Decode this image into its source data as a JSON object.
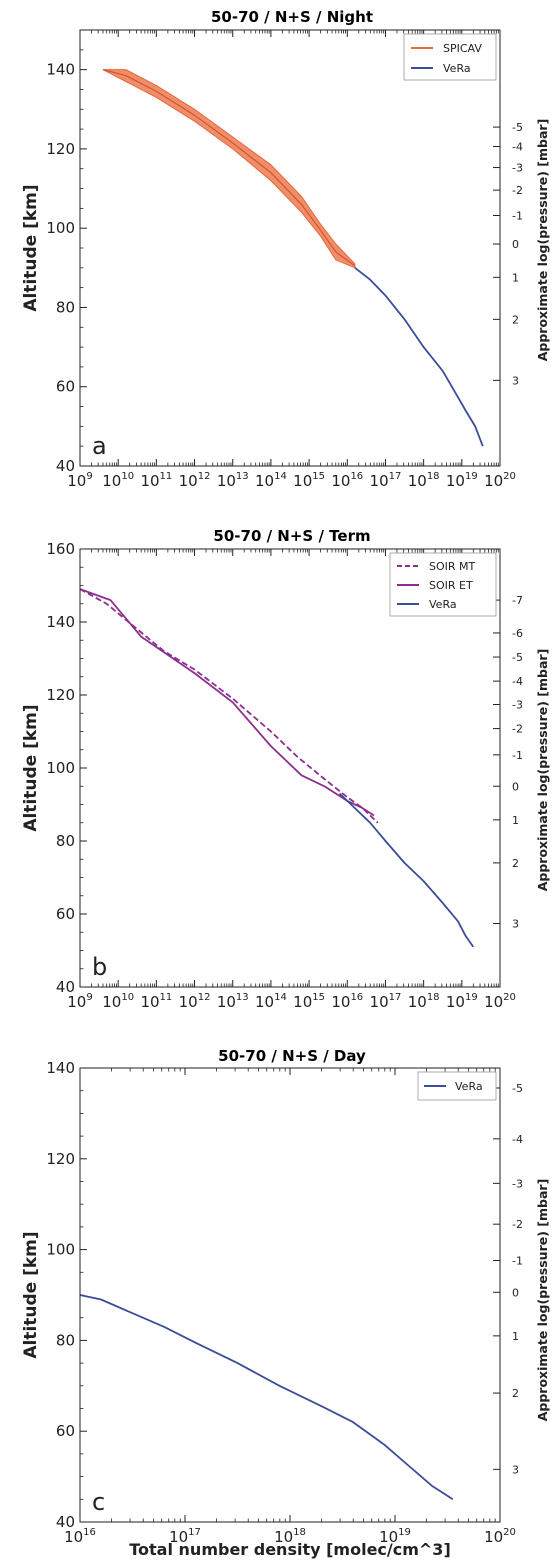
{
  "figure": {
    "xlabel": "Total number density [molec/cm^3]"
  },
  "chart_data": [
    {
      "type": "line",
      "panel_label": "a",
      "title": "50-70 / N+S / Night",
      "ylabel": "Altitude [km]",
      "y2label": "Approximate log(pressure) [mbar]",
      "x_scale": "log",
      "xlim_exp": [
        9,
        20
      ],
      "x_tick_base": "10",
      "x_tick_exponents": [
        "9",
        "10",
        "11",
        "12",
        "13",
        "14",
        "15",
        "16",
        "17",
        "18",
        "19",
        "20"
      ],
      "ylim": [
        40,
        150
      ],
      "y_ticks": [
        "40",
        "60",
        "80",
        "100",
        "120",
        "140"
      ],
      "y2_ticks": [
        {
          "label": "-5",
          "alt": 125.5
        },
        {
          "label": "-4",
          "alt": 120.6
        },
        {
          "label": "-3",
          "alt": 115.3
        },
        {
          "label": "-2",
          "alt": 109.6
        },
        {
          "label": "-1",
          "alt": 103.2
        },
        {
          "label": "0",
          "alt": 96.0
        },
        {
          "label": "1",
          "alt": 87.6
        },
        {
          "label": "2",
          "alt": 77.0
        },
        {
          "label": "3",
          "alt": 61.6
        }
      ],
      "legend_position": "top-right",
      "series": [
        {
          "name": "SPICAV",
          "color": "#e9683a",
          "style": "band",
          "x_log": [
            9.6,
            10.2,
            11.0,
            12.0,
            13.0,
            14.0,
            14.8,
            15.3,
            15.7,
            16.2
          ],
          "y_lower": [
            140,
            137,
            133,
            127,
            120,
            112,
            104,
            98,
            92,
            90
          ],
          "y_upper": [
            140,
            140,
            136,
            130,
            123,
            116,
            108,
            101,
            96,
            91
          ]
        },
        {
          "name": "VeRa",
          "color": "#3c4c98",
          "style": "solid",
          "x_log": [
            16.2,
            16.6,
            17.0,
            17.5,
            18.0,
            18.5,
            18.8,
            19.1,
            19.35,
            19.55
          ],
          "y": [
            90,
            87,
            83,
            77,
            70,
            64,
            59,
            54,
            50,
            45
          ]
        }
      ]
    },
    {
      "type": "line",
      "panel_label": "b",
      "title": "50-70 / N+S / Term",
      "ylabel": "Altitude [km]",
      "y2label": "Approximate log(pressure) [mbar]",
      "x_scale": "log",
      "xlim_exp": [
        9,
        20
      ],
      "x_tick_base": "10",
      "x_tick_exponents": [
        "9",
        "10",
        "11",
        "12",
        "13",
        "14",
        "15",
        "16",
        "17",
        "18",
        "19",
        "20"
      ],
      "ylim": [
        40,
        160
      ],
      "y_ticks": [
        "40",
        "60",
        "80",
        "100",
        "120",
        "140",
        "160"
      ],
      "y2_ticks": [
        {
          "label": "-7",
          "alt": 146
        },
        {
          "label": "-6",
          "alt": 137
        },
        {
          "label": "-5",
          "alt": 130.4
        },
        {
          "label": "-4",
          "alt": 123.8
        },
        {
          "label": "-3",
          "alt": 117.4
        },
        {
          "label": "-2",
          "alt": 110.8
        },
        {
          "label": "-1",
          "alt": 103.6
        },
        {
          "label": "0",
          "alt": 95.0
        },
        {
          "label": "1",
          "alt": 85.8
        },
        {
          "label": "2",
          "alt": 74.0
        },
        {
          "label": "3",
          "alt": 57.4
        }
      ],
      "legend_position": "top-right",
      "series": [
        {
          "name": "SOIR MT",
          "color": "#8b2f8e",
          "style": "dashed",
          "x_log": [
            9.0,
            9.7,
            10.5,
            11.2,
            12.0,
            13.0,
            14.0,
            14.7,
            15.4,
            16.0,
            16.4,
            16.8
          ],
          "y": [
            149,
            145,
            138,
            132,
            127,
            119,
            110,
            103,
            97,
            92,
            89,
            85
          ]
        },
        {
          "name": "SOIR ET",
          "color": "#8b2f8e",
          "style": "solid",
          "x_log": [
            9.0,
            9.8,
            10.6,
            11.3,
            12.0,
            13.0,
            14.0,
            14.8,
            15.4,
            16.0,
            16.4,
            16.7
          ],
          "y": [
            149,
            146,
            136,
            131,
            126,
            118,
            106,
            98,
            95,
            91,
            89,
            87
          ]
        },
        {
          "name": "VeRa",
          "color": "#3c4c98",
          "style": "solid",
          "x_log": [
            15.8,
            16.2,
            16.6,
            17.0,
            17.5,
            18.0,
            18.5,
            18.9,
            19.1,
            19.3
          ],
          "y": [
            93,
            89,
            85,
            80,
            74,
            69,
            63,
            58,
            54,
            51
          ]
        }
      ]
    },
    {
      "type": "line",
      "panel_label": "c",
      "title": "50-70 / N+S / Day",
      "ylabel": "Altitude [km]",
      "y2label": "Approximate log(pressure) [mbar]",
      "x_scale": "log",
      "xlim_exp": [
        16,
        20
      ],
      "x_tick_base": "10",
      "x_tick_exponents": [
        "16",
        "17",
        "18",
        "19",
        "20"
      ],
      "ylim": [
        40,
        140
      ],
      "y_ticks": [
        "40",
        "60",
        "80",
        "100",
        "120",
        "140"
      ],
      "y2_ticks": [
        {
          "label": "-5",
          "alt": 135.6
        },
        {
          "label": "-4",
          "alt": 124.4
        },
        {
          "label": "-3",
          "alt": 114.6
        },
        {
          "label": "-2",
          "alt": 105.6
        },
        {
          "label": "-1",
          "alt": 97.6
        },
        {
          "label": "0",
          "alt": 90.6
        },
        {
          "label": "1",
          "alt": 81.0
        },
        {
          "label": "2",
          "alt": 68.4
        },
        {
          "label": "3",
          "alt": 51.6
        }
      ],
      "legend_position": "top-right",
      "series": [
        {
          "name": "VeRa",
          "color": "#3c4c98",
          "style": "solid",
          "x_log": [
            16.0,
            16.2,
            16.5,
            16.8,
            17.1,
            17.5,
            17.9,
            18.3,
            18.6,
            18.9,
            19.15,
            19.35,
            19.55
          ],
          "y": [
            90,
            89,
            86,
            83,
            79.5,
            75,
            70,
            65.5,
            62,
            57,
            52,
            48,
            45
          ]
        }
      ]
    }
  ]
}
